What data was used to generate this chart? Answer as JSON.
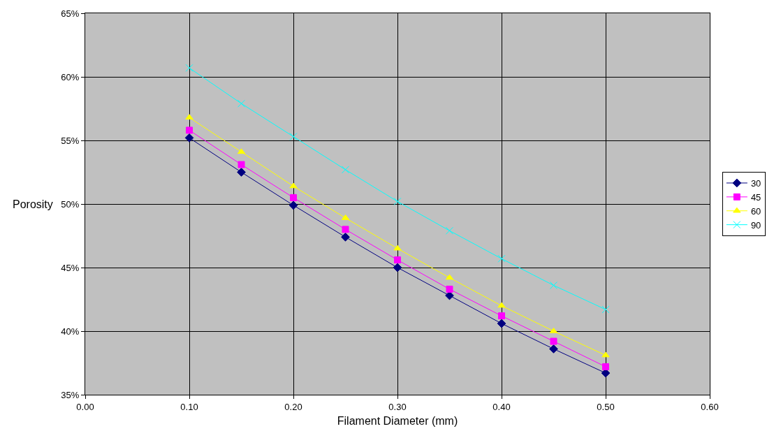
{
  "chart_data": {
    "type": "line",
    "xlabel": "Filament Diameter (mm)",
    "ylabel": "Porosity",
    "x": [
      0.1,
      0.15,
      0.2,
      0.25,
      0.3,
      0.35,
      0.4,
      0.45,
      0.5
    ],
    "series": [
      {
        "name": "30",
        "color": "#000080",
        "marker": "diamond",
        "values": [
          55.2,
          52.5,
          49.9,
          47.4,
          45.0,
          42.8,
          40.6,
          38.6,
          36.7
        ]
      },
      {
        "name": "45",
        "color": "#ff00ff",
        "marker": "square",
        "values": [
          55.8,
          53.1,
          50.5,
          48.0,
          45.6,
          43.3,
          41.2,
          39.2,
          37.2
        ]
      },
      {
        "name": "60",
        "color": "#ffff00",
        "marker": "triangle",
        "values": [
          56.8,
          54.1,
          51.4,
          48.9,
          46.5,
          44.2,
          42.0,
          40.0,
          38.1
        ]
      },
      {
        "name": "90",
        "color": "#00ffff",
        "marker": "cross",
        "values": [
          60.7,
          57.9,
          55.3,
          52.7,
          50.2,
          47.9,
          45.7,
          43.6,
          41.7
        ]
      }
    ],
    "xlim": [
      0,
      0.6
    ],
    "xticks": [
      {
        "value": 0,
        "label": "0.00"
      },
      {
        "value": 0.1,
        "label": "0.10"
      },
      {
        "value": 0.2,
        "label": "0.20"
      },
      {
        "value": 0.3,
        "label": "0.30"
      },
      {
        "value": 0.4,
        "label": "0.40"
      },
      {
        "value": 0.5,
        "label": "0.50"
      },
      {
        "value": 0.6,
        "label": "0.60"
      }
    ],
    "ylim": [
      35,
      65
    ],
    "yticks": [
      {
        "value": 35,
        "label": "35%"
      },
      {
        "value": 40,
        "label": "40%"
      },
      {
        "value": 45,
        "label": "45%"
      },
      {
        "value": 50,
        "label": "50%"
      },
      {
        "value": 55,
        "label": "55%"
      },
      {
        "value": 60,
        "label": "60%"
      },
      {
        "value": 65,
        "label": "65%"
      }
    ],
    "grid": true,
    "legend": "right",
    "line_style": "solid"
  }
}
